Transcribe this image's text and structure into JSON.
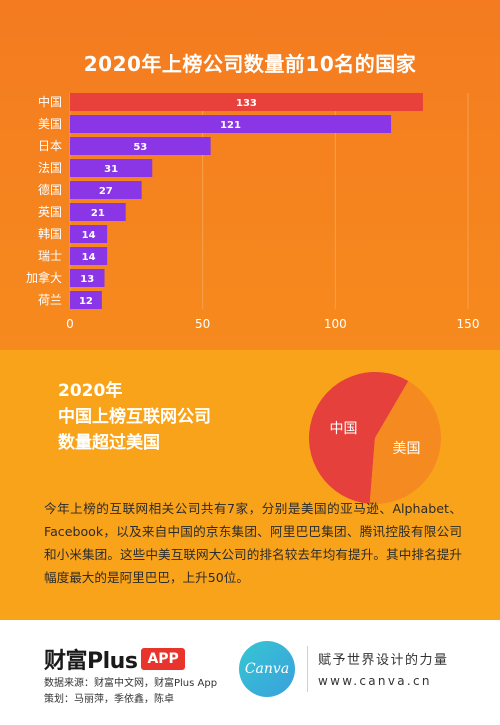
{
  "chart_data": {
    "type": "bar",
    "orientation": "horizontal",
    "title": "2020年上榜公司数量前10名的国家",
    "categories": [
      "中国",
      "美国",
      "日本",
      "法国",
      "德国",
      "英国",
      "韩国",
      "瑞士",
      "加拿大",
      "荷兰"
    ],
    "values": [
      133,
      121,
      53,
      31,
      27,
      21,
      14,
      14,
      13,
      12
    ],
    "xlim": [
      0,
      150
    ],
    "xticks": [
      "0",
      "50",
      "100",
      "150"
    ],
    "grid": true,
    "bar_colors": [
      "#e8403a",
      "#8b36e6",
      "#8b36e6",
      "#8b36e6",
      "#8b36e6",
      "#8b36e6",
      "#8b36e6",
      "#8b36e6",
      "#8b36e6",
      "#8b36e6"
    ]
  },
  "pie": {
    "type": "pie",
    "labels": [
      "中国",
      "美国"
    ],
    "values": [
      4,
      3
    ],
    "colors": [
      "#e5403b",
      "#f58b20"
    ]
  },
  "headline": {
    "line1": "2020年",
    "line2": "中国上榜互联网公司",
    "line3": "数量超过美国"
  },
  "body": {
    "paragraph": "今年上榜的互联网相关公司共有7家，分别是美国的亚马逊、Alphabet、Facebook，以及来自中国的京东集团、阿里巴巴集团、腾讯控股有限公司和小米集团。这些中美互联网大公司的排名较去年均有提升。其中排名提升幅度最大的是阿里巴巴，上升50位。"
  },
  "footer": {
    "brand": "财富Plus",
    "brand_app": "APP",
    "source": "数据来源：财富中文网，财富Plus App",
    "planner": "策划：马丽萍，季依鑫，陈卓",
    "canva_logo": "Canva",
    "slogan": "赋予世界设计的力量",
    "website": "www.canva.cn"
  },
  "colors": {
    "top_bg": "#f47b20",
    "mid_bg": "#f9a31b",
    "china_bar": "#e8403a",
    "other_bar": "#8b36e6"
  }
}
